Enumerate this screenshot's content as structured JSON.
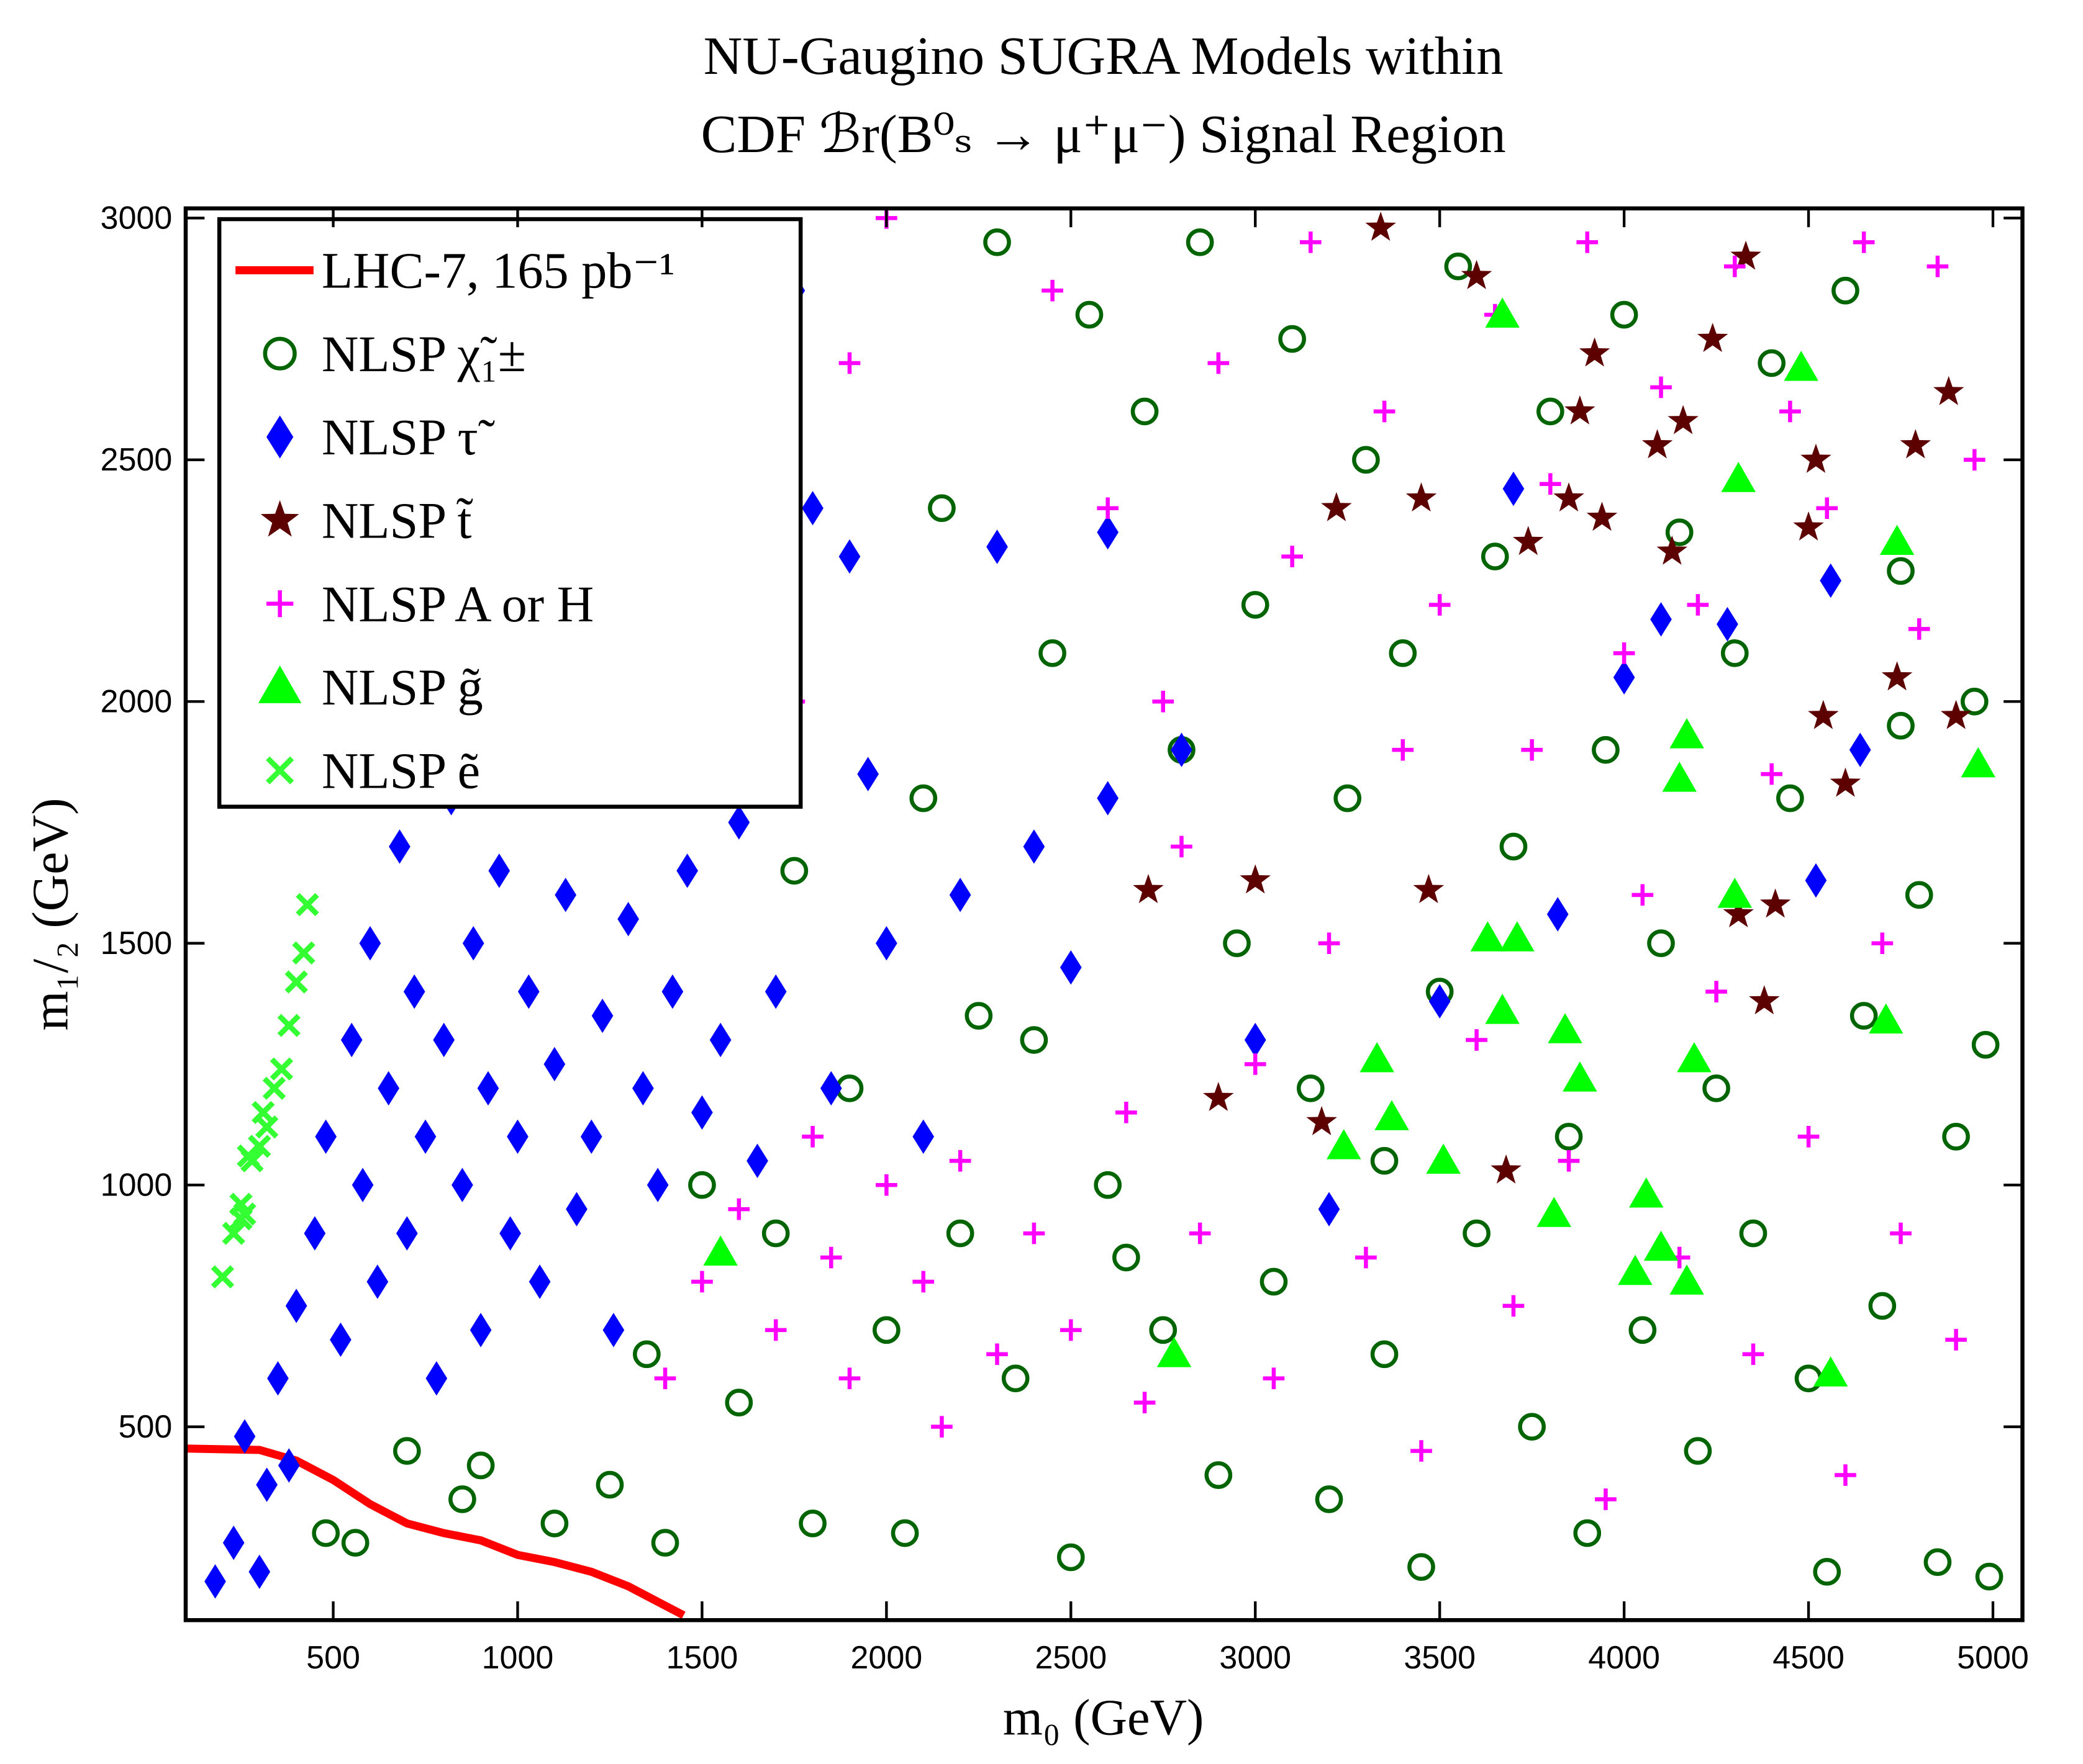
{
  "chart_data": {
    "type": "scatter",
    "title": [
      "NU-Gaugino SUGRA Models within",
      "CDF ℬr(B⁰ₛ → μ⁺μ⁻) Signal Region"
    ],
    "x_label": "m₀ (GeV)",
    "y_label": "m₁/₂ (GeV)",
    "xlim": [
      100,
      5080
    ],
    "ylim": [
      100,
      3020
    ],
    "xticks": [
      500,
      1000,
      1500,
      2000,
      2500,
      3000,
      3500,
      4000,
      4500,
      5000
    ],
    "yticks": [
      500,
      1000,
      1500,
      2000,
      2500,
      3000
    ],
    "legend": "upper left",
    "series": [
      {
        "name": "LHC-7, 165 pb⁻¹",
        "color": "#ff0000",
        "marker": "line",
        "x": [
          100,
          300,
          400,
          500,
          600,
          700,
          800,
          900,
          1000,
          1100,
          1200,
          1300,
          1400,
          1450
        ],
        "y": [
          455,
          452,
          430,
          390,
          340,
          300,
          280,
          265,
          235,
          220,
          200,
          170,
          130,
          110
        ]
      },
      {
        "name": "NLSP χ̃₁±",
        "color": "#006400",
        "marker": "circle",
        "x": [
          480,
          560,
          700,
          850,
          900,
          1100,
          1250,
          1400,
          1600,
          1700,
          1800,
          1900,
          2000,
          2050,
          2100,
          2150,
          2200,
          2300,
          2350,
          2400,
          2450,
          2500,
          2550,
          2600,
          2700,
          2750,
          2800,
          2850,
          2900,
          2950,
          3000,
          3050,
          3100,
          3150,
          3200,
          3250,
          3300,
          3350,
          3400,
          3450,
          3500,
          3550,
          3600,
          3650,
          3700,
          3750,
          3800,
          3850,
          3900,
          3950,
          4000,
          4050,
          4100,
          4150,
          4200,
          4250,
          4300,
          4350,
          4400,
          4450,
          4500,
          4550,
          4600,
          4650,
          4700,
          4750,
          4800,
          4850,
          4900,
          4950,
          4980,
          4990,
          1350,
          1500,
          1750,
          2250,
          2650,
          3350,
          4750
        ],
        "y": [
          280,
          260,
          450,
          350,
          420,
          300,
          380,
          260,
          550,
          900,
          300,
          1200,
          700,
          280,
          1800,
          2400,
          900,
          2950,
          600,
          1300,
          2100,
          230,
          2800,
          1000,
          2600,
          700,
          1900,
          2950,
          400,
          1500,
          2200,
          800,
          2750,
          1200,
          350,
          1800,
          2500,
          650,
          2100,
          210,
          1400,
          2900,
          900,
          2300,
          1700,
          500,
          2600,
          1100,
          280,
          1900,
          2800,
          700,
          1500,
          2350,
          450,
          1200,
          2100,
          900,
          2700,
          1800,
          600,
          200,
          2850,
          1350,
          750,
          2270,
          1600,
          220,
          1100,
          2000,
          1290,
          190,
          650,
          1000,
          1650,
          1350,
          850,
          1050,
          1950
        ]
      },
      {
        "name": "NLSP τ̃",
        "color": "#0000ff",
        "marker": "diamond",
        "x": [
          180,
          230,
          260,
          300,
          320,
          350,
          380,
          400,
          450,
          480,
          520,
          550,
          580,
          600,
          620,
          650,
          680,
          700,
          720,
          750,
          780,
          800,
          820,
          850,
          880,
          900,
          920,
          950,
          980,
          1000,
          1030,
          1060,
          1100,
          1130,
          1160,
          1200,
          1230,
          1260,
          1300,
          1340,
          1380,
          1420,
          1460,
          1500,
          1550,
          1600,
          1650,
          1700,
          1750,
          1800,
          1850,
          1900,
          2000,
          2100,
          2200,
          2300,
          2400,
          2500,
          2600,
          2800,
          3000,
          3200,
          3500,
          3700,
          3820,
          4000,
          4100,
          4280,
          4520,
          4560,
          4640,
          2600,
          1950
        ],
        "y": [
          180,
          260,
          480,
          200,
          380,
          600,
          420,
          750,
          900,
          1100,
          680,
          1300,
          1000,
          1500,
          800,
          1200,
          1700,
          900,
          1400,
          1100,
          600,
          1300,
          1800,
          1000,
          1500,
          700,
          1200,
          1650,
          900,
          1100,
          1400,
          800,
          1250,
          1600,
          950,
          1100,
          1350,
          700,
          1550,
          1200,
          1000,
          1400,
          1650,
          1150,
          1300,
          1750,
          1050,
          1400,
          2850,
          2400,
          1200,
          2300,
          1500,
          1100,
          1600,
          2320,
          1700,
          1450,
          2350,
          1900,
          1300,
          950,
          1380,
          2440,
          1560,
          2050,
          2170,
          2160,
          1630,
          2250,
          1900,
          1800,
          1850
        ]
      },
      {
        "name": "NLSP t̃",
        "color": "#5c0000",
        "marker": "star",
        "x": [
          2710,
          3000,
          2900,
          3180,
          3220,
          3340,
          3450,
          3470,
          3600,
          3680,
          3740,
          3850,
          3880,
          3920,
          3940,
          4090,
          4130,
          4160,
          4240,
          4310,
          4330,
          4380,
          4410,
          4500,
          4520,
          4540,
          4600,
          4740,
          4790,
          4880,
          4900
        ],
        "y": [
          1610,
          1630,
          1180,
          1130,
          2400,
          2980,
          2420,
          1610,
          2880,
          1030,
          2330,
          2420,
          2600,
          2720,
          2380,
          2530,
          2310,
          2580,
          2750,
          1560,
          2920,
          1380,
          1580,
          2360,
          2500,
          1970,
          1830,
          2050,
          2530,
          2640,
          1970
        ]
      },
      {
        "name": "NLSP A or H",
        "color": "#ff00ff",
        "marker": "plus",
        "x": [
          1400,
          1500,
          1600,
          1700,
          1800,
          1850,
          1900,
          2000,
          2100,
          2150,
          2200,
          2300,
          2400,
          2450,
          2500,
          2600,
          2650,
          2700,
          2750,
          2800,
          2850,
          2900,
          3000,
          3050,
          3100,
          3150,
          3200,
          3300,
          3350,
          3400,
          3450,
          3500,
          3600,
          3650,
          3700,
          3750,
          3800,
          3850,
          3900,
          3950,
          4000,
          4050,
          4100,
          4150,
          4200,
          4250,
          4300,
          4350,
          4400,
          4450,
          4500,
          4550,
          4600,
          4650,
          4700,
          4750,
          4800,
          4850,
          4900,
          4950,
          1750,
          1900,
          2000
        ],
        "y": [
          600,
          800,
          950,
          700,
          1100,
          850,
          600,
          1000,
          800,
          500,
          1050,
          650,
          900,
          2850,
          700,
          2400,
          1150,
          550,
          2000,
          1700,
          900,
          2700,
          1250,
          600,
          2300,
          2950,
          1500,
          850,
          2600,
          1900,
          450,
          2200,
          1300,
          2800,
          750,
          1900,
          2450,
          1050,
          2950,
          350,
          2100,
          1600,
          2650,
          850,
          2200,
          1400,
          2900,
          650,
          1850,
          2600,
          1100,
          2400,
          400,
          2950,
          1500,
          900,
          2150,
          2900,
          680,
          2500,
          2000,
          2700,
          3000
        ]
      },
      {
        "name": "NLSP g̃",
        "color": "#00ff00",
        "marker": "triangle",
        "x": [
          1550,
          2780,
          3240,
          3330,
          3370,
          3510,
          3630,
          3670,
          3710,
          3670,
          3810,
          3840,
          3880,
          4030,
          4060,
          4100,
          4150,
          4170,
          4170,
          4190,
          4300,
          4310,
          4480,
          4560,
          4710,
          4740,
          4960
        ],
        "y": [
          860,
          650,
          1080,
          1260,
          1140,
          1050,
          1510,
          1360,
          1510,
          2800,
          940,
          1320,
          1220,
          820,
          980,
          870,
          1840,
          800,
          1930,
          1260,
          1600,
          2460,
          2690,
          610,
          1340,
          2330,
          1870
        ]
      },
      {
        "name": "NLSP ẽ",
        "color": "#33ff33",
        "marker": "x",
        "x": [
          200,
          230,
          250,
          260,
          280,
          300,
          320,
          340,
          360,
          380,
          400,
          420,
          430,
          250,
          270,
          310
        ],
        "y": [
          810,
          900,
          960,
          940,
          1050,
          1080,
          1120,
          1200,
          1240,
          1330,
          1420,
          1480,
          1580,
          930,
          1060,
          1150
        ]
      }
    ]
  }
}
